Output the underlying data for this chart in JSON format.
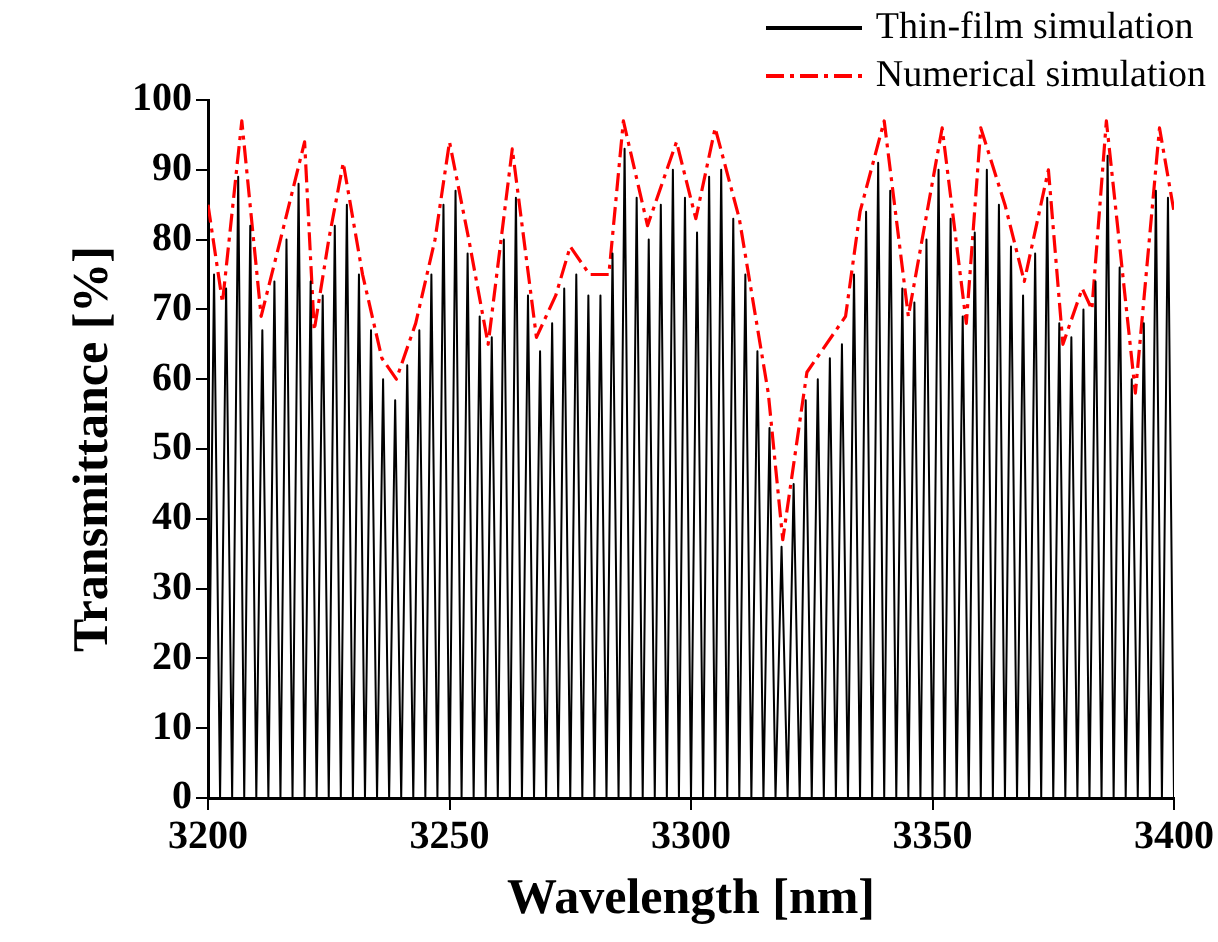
{
  "chart_data": {
    "type": "line",
    "xlabel": "Wavelength [nm]",
    "ylabel": "Transmittance [%]",
    "xlim": [
      3200,
      3400
    ],
    "xticks": [
      3200,
      3250,
      3300,
      3350,
      3400
    ],
    "ylim": [
      0,
      100
    ],
    "yticks": [
      0,
      10,
      20,
      30,
      40,
      50,
      60,
      70,
      80,
      90,
      100
    ],
    "grid": false,
    "legend": "top right",
    "marker": "none",
    "series": [
      {
        "name": "Thin-film simulation",
        "color": "#000000",
        "line_style": "solid",
        "x": [
          3200,
          3201.25,
          3202.5,
          3203.75,
          3205,
          3206.25,
          3207.5,
          3208.75,
          3210,
          3211.25,
          3212.5,
          3213.75,
          3215,
          3216.25,
          3217.5,
          3218.75,
          3220,
          3221.25,
          3222.5,
          3223.75,
          3225,
          3226.25,
          3227.5,
          3228.75,
          3230,
          3231.25,
          3232.5,
          3233.75,
          3235,
          3236.25,
          3237.5,
          3238.75,
          3240,
          3241.25,
          3242.5,
          3243.75,
          3245,
          3246.25,
          3247.5,
          3248.75,
          3250,
          3251.25,
          3252.5,
          3253.75,
          3255,
          3256.25,
          3257.5,
          3258.75,
          3260,
          3261.25,
          3262.5,
          3263.75,
          3265,
          3266.25,
          3267.5,
          3268.75,
          3270,
          3271.25,
          3272.5,
          3273.75,
          3275,
          3276.25,
          3277.5,
          3278.75,
          3280,
          3281.25,
          3282.5,
          3283.75,
          3285,
          3286.25,
          3287.5,
          3288.75,
          3290,
          3291.25,
          3292.5,
          3293.75,
          3295,
          3296.25,
          3297.5,
          3298.75,
          3300,
          3301.25,
          3302.5,
          3303.75,
          3305,
          3306.25,
          3307.5,
          3308.75,
          3310,
          3311.25,
          3312.5,
          3313.75,
          3315,
          3316.25,
          3317.5,
          3318.75,
          3320,
          3321.25,
          3322.5,
          3323.75,
          3325,
          3326.25,
          3327.5,
          3328.75,
          3330,
          3331.25,
          3332.5,
          3333.75,
          3335,
          3336.25,
          3337.5,
          3338.75,
          3340,
          3341.25,
          3342.5,
          3343.75,
          3345,
          3346.25,
          3347.5,
          3348.75,
          3350,
          3351.25,
          3352.5,
          3353.75,
          3355,
          3356.25,
          3357.5,
          3358.75,
          3360,
          3361.25,
          3362.5,
          3363.75,
          3365,
          3366.25,
          3367.5,
          3368.75,
          3370,
          3371.25,
          3372.5,
          3373.75,
          3375,
          3376.25,
          3377.5,
          3378.75,
          3380,
          3381.25,
          3382.5,
          3383.75,
          3385,
          3386.25,
          3387.5,
          3388.75,
          3390,
          3391.25,
          3392.5,
          3393.75,
          3395,
          3396.25,
          3397.5,
          3398.75,
          3400
        ],
        "values": [
          0,
          75,
          0,
          73,
          0,
          89,
          0,
          82,
          0,
          67,
          0,
          74,
          0,
          80,
          0,
          88,
          0,
          74,
          0,
          72,
          0,
          82,
          0,
          85,
          0,
          75,
          0,
          67,
          0,
          60,
          0,
          57,
          0,
          62,
          0,
          67,
          0,
          75,
          0,
          85,
          0,
          87,
          0,
          78,
          0,
          69,
          0,
          66,
          0,
          80,
          0,
          86,
          0,
          72,
          0,
          64,
          0,
          68,
          0,
          73,
          0,
          75,
          0,
          72,
          0,
          72,
          0,
          78,
          0,
          93,
          0,
          86,
          0,
          80,
          0,
          85,
          0,
          90,
          0,
          86,
          0,
          81,
          0,
          89,
          0,
          90,
          0,
          83,
          0,
          75,
          0,
          64,
          0,
          53,
          0,
          36,
          0,
          45,
          0,
          57,
          0,
          60,
          0,
          63,
          0,
          65,
          0,
          75,
          0,
          84,
          0,
          91,
          0,
          87,
          0,
          73,
          0,
          71,
          0,
          80,
          0,
          90,
          0,
          83,
          0,
          69,
          0,
          81,
          0,
          90,
          0,
          85,
          0,
          79,
          0,
          72,
          0,
          78,
          0,
          86,
          0,
          68,
          0,
          66,
          0,
          70,
          0,
          74,
          0,
          92,
          0,
          76,
          0,
          60,
          0,
          68,
          0,
          87,
          0,
          86,
          0
        ]
      },
      {
        "name": "Numerical simulation",
        "color": "#ff0000",
        "line_style": "dashed",
        "x": [
          3200,
          3203,
          3207,
          3211,
          3215,
          3220,
          3222,
          3225,
          3228,
          3232,
          3236,
          3239,
          3243,
          3247,
          3250,
          3254,
          3258,
          3263,
          3268,
          3272,
          3275,
          3279,
          3283,
          3286,
          3291,
          3297,
          3301,
          3305,
          3310,
          3316,
          3319,
          3324,
          3332,
          3335,
          3340,
          3345,
          3352,
          3357,
          3360,
          3365,
          3369,
          3374,
          3377,
          3381,
          3383,
          3386,
          3392,
          3397,
          3400
        ],
        "values": [
          85,
          71,
          97,
          69,
          80,
          94,
          67,
          80,
          91,
          75,
          63,
          60,
          68,
          80,
          94,
          80,
          65,
          93,
          66,
          72,
          79,
          75,
          75,
          97,
          82,
          94,
          83,
          96,
          83,
          58,
          37,
          61,
          69,
          84,
          97,
          69,
          96,
          68,
          96,
          85,
          74,
          90,
          65,
          73,
          70,
          97,
          58,
          96,
          84
        ]
      }
    ]
  }
}
